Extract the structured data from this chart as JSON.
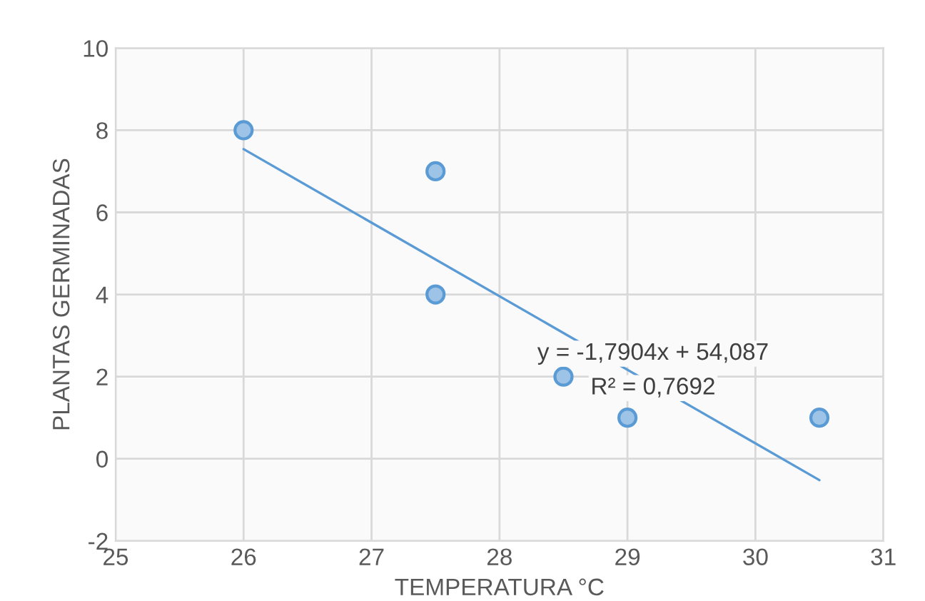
{
  "chart_data": {
    "type": "scatter",
    "xlabel": "TEMPERATURA °C",
    "ylabel": "PLANTAS GERMINADAS",
    "xlim": [
      25,
      31
    ],
    "xticks": [
      25,
      26,
      27,
      28,
      29,
      30,
      31
    ],
    "ylim": [
      -2,
      10
    ],
    "yticks": [
      -2,
      0,
      2,
      4,
      6,
      8,
      10
    ],
    "grid": true,
    "legend": false,
    "series": [
      {
        "marker": "circle",
        "color": "#9dc3e6",
        "x": [
          26,
          27.5,
          27.5,
          28.5,
          29,
          30.5
        ],
        "values": [
          8,
          7,
          4,
          2,
          1,
          1
        ]
      },
      {
        "type": "line",
        "color": "#5b9bd5",
        "x": [
          26,
          30.5
        ],
        "values": [
          7.54,
          -0.52
        ]
      }
    ],
    "annotations": [
      "y = -1,7904x + 54,087",
      "R² = 0,7692"
    ]
  }
}
